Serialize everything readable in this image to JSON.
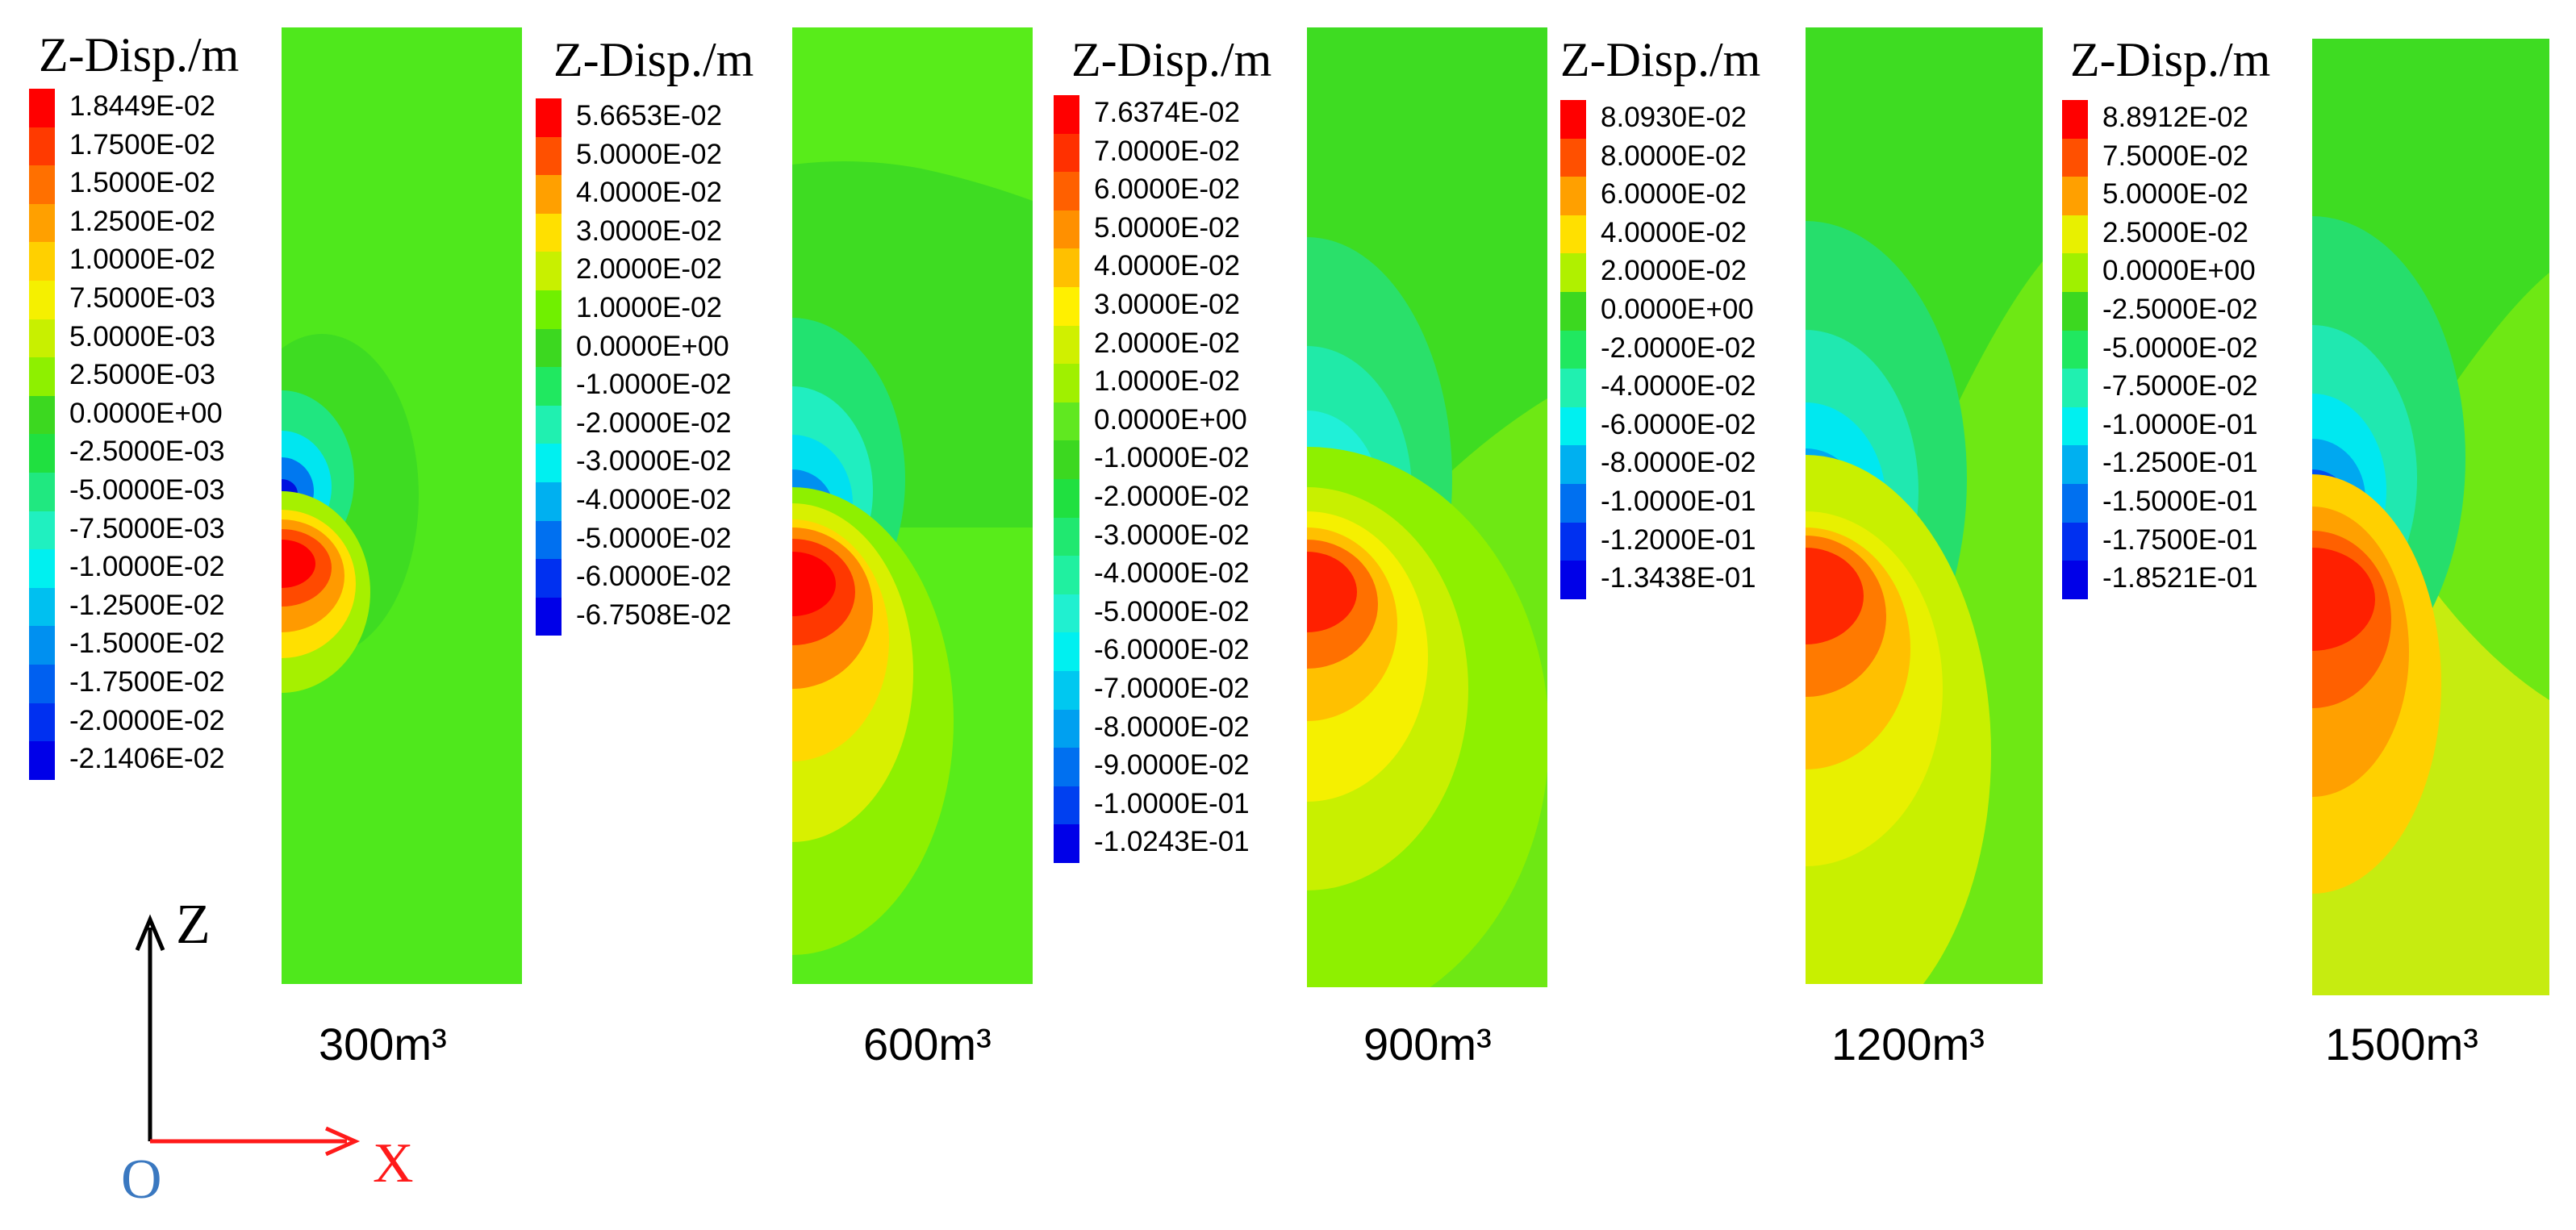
{
  "legend_title": "Z-Disp./m",
  "colors": {
    "field_green": "#4fe81c",
    "z_axis": "#000000",
    "x_axis": "#ff1a1a",
    "origin": "#3a78c0"
  },
  "axes": {
    "z": "Z",
    "x": "X",
    "origin": "O"
  },
  "panels": [
    {
      "volume": "300m³",
      "legend": [
        "1.8449E-02",
        "1.7500E-02",
        "1.5000E-02",
        "1.2500E-02",
        "1.0000E-02",
        "7.5000E-03",
        "5.0000E-03",
        "2.5000E-03",
        "0.0000E+00",
        "-2.5000E-03",
        "-5.0000E-03",
        "-7.5000E-03",
        "-1.0000E-02",
        "-1.2500E-02",
        "-1.5000E-02",
        "-1.7500E-02",
        "-2.0000E-02",
        "-2.1406E-02"
      ],
      "colors": [
        "#ff0000",
        "#ff3a00",
        "#ff7000",
        "#ffa000",
        "#ffd000",
        "#f5f000",
        "#c8f000",
        "#8ef000",
        "#3cd820",
        "#20e040",
        "#20e880",
        "#20f0c0",
        "#00f0f0",
        "#00c0f0",
        "#0090f0",
        "#0060f0",
        "#0030f0",
        "#0000e8"
      ]
    },
    {
      "volume": "600m³",
      "legend": [
        "5.6653E-02",
        "5.0000E-02",
        "4.0000E-02",
        "3.0000E-02",
        "2.0000E-02",
        "1.0000E-02",
        "0.0000E+00",
        "-1.0000E-02",
        "-2.0000E-02",
        "-3.0000E-02",
        "-4.0000E-02",
        "-5.0000E-02",
        "-6.0000E-02",
        "-6.7508E-02"
      ],
      "colors": [
        "#ff0000",
        "#ff5000",
        "#ffa000",
        "#ffe000",
        "#c8f000",
        "#70f000",
        "#3cd820",
        "#20e860",
        "#20f0b0",
        "#00f0f0",
        "#00b0f0",
        "#0070f0",
        "#0030f0",
        "#0000e8"
      ]
    },
    {
      "volume": "900m³",
      "legend": [
        "7.6374E-02",
        "7.0000E-02",
        "6.0000E-02",
        "5.0000E-02",
        "4.0000E-02",
        "3.0000E-02",
        "2.0000E-02",
        "1.0000E-02",
        "0.0000E+00",
        "-1.0000E-02",
        "-2.0000E-02",
        "-3.0000E-02",
        "-4.0000E-02",
        "-5.0000E-02",
        "-6.0000E-02",
        "-7.0000E-02",
        "-8.0000E-02",
        "-9.0000E-02",
        "-1.0000E-01",
        "-1.0243E-01"
      ],
      "colors": [
        "#ff0000",
        "#ff3000",
        "#ff6000",
        "#ff9000",
        "#ffc000",
        "#fff000",
        "#d0f000",
        "#a0f000",
        "#60e820",
        "#3cd820",
        "#20e040",
        "#20e870",
        "#20f0a0",
        "#20f0d0",
        "#00f0f0",
        "#00c8f0",
        "#00a0f0",
        "#0070f0",
        "#0040f0",
        "#0000e8"
      ]
    },
    {
      "volume": "1200m³",
      "legend": [
        "8.0930E-02",
        "8.0000E-02",
        "6.0000E-02",
        "4.0000E-02",
        "2.0000E-02",
        "0.0000E+00",
        "-2.0000E-02",
        "-4.0000E-02",
        "-6.0000E-02",
        "-8.0000E-02",
        "-1.0000E-01",
        "-1.2000E-01",
        "-1.3438E-01"
      ],
      "colors": [
        "#ff0000",
        "#ff5000",
        "#ffa000",
        "#ffe000",
        "#b0f000",
        "#3cd820",
        "#20e860",
        "#20f0b0",
        "#00f0f0",
        "#00b0f0",
        "#0070f0",
        "#0030f0",
        "#0000e8"
      ]
    },
    {
      "volume": "1500m³",
      "legend": [
        "8.8912E-02",
        "7.5000E-02",
        "5.0000E-02",
        "2.5000E-02",
        "0.0000E+00",
        "-2.5000E-02",
        "-5.0000E-02",
        "-7.5000E-02",
        "-1.0000E-01",
        "-1.2500E-01",
        "-1.5000E-01",
        "-1.7500E-01",
        "-1.8521E-01"
      ],
      "colors": [
        "#ff0000",
        "#ff5000",
        "#ffa000",
        "#e8f000",
        "#a0f000",
        "#3cd820",
        "#20e860",
        "#20f0b0",
        "#00f0f0",
        "#00b0f0",
        "#0070f0",
        "#0030f0",
        "#0000e8"
      ]
    }
  ]
}
